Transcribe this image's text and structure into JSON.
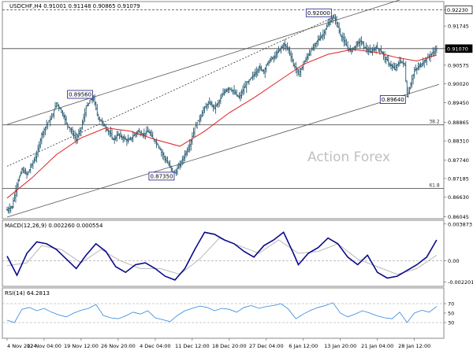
{
  "header": {
    "symbol_info": "USDCHF,H4  0.91001 0.91148 0.90865 0.91079"
  },
  "watermark": "Action Forex",
  "colors": {
    "price_bar": "#2b5d73",
    "ma": "#e02020",
    "macd_line": "#0a0a8c",
    "macd_signal": "#b8b8b8",
    "rsi": "#2e86de",
    "channel": "#555555",
    "fib": "#555555",
    "label_border": "#1a1a8c",
    "price_tag_fill": "#ffffff"
  },
  "chart_data": [
    {
      "type": "candlestick",
      "name": "price",
      "ylim": [
        0.8603,
        0.9243
      ],
      "right_axis_ticks": [
        "0.92230",
        "0.91745",
        "0.91070",
        "0.90575",
        "0.90020",
        "0.89450",
        "0.88865",
        "0.88310",
        "0.87740",
        "0.87185",
        "0.86630",
        "0.86045"
      ],
      "right_axis_values": [
        0.9223,
        0.91745,
        0.9107,
        0.90575,
        0.9002,
        0.8945,
        0.88865,
        0.8831,
        0.8774,
        0.87185,
        0.8663,
        0.86045
      ],
      "current_price_tag": "0.91070",
      "x_labels": [
        "4 Nov 2024",
        "12 Nov 04:00",
        "19 Nov 12:00",
        "26 Nov 20:00",
        "4 Dec 04:00",
        "11 Dec 12:00",
        "18 Dec 20:00",
        "27 Dec 04:00",
        "6 Jan 12:00",
        "13 Jan 20:00",
        "21 Jan 04:00",
        "28 Jan 12:00"
      ],
      "x_label_positions": [
        0,
        15,
        30,
        45,
        60,
        75,
        90,
        105,
        120,
        135,
        150,
        165
      ],
      "x_range": [
        0,
        175
      ],
      "price_path": [
        [
          0,
          0.8625
        ],
        [
          2,
          0.8635
        ],
        [
          4,
          0.87
        ],
        [
          6,
          0.8745
        ],
        [
          8,
          0.873
        ],
        [
          10,
          0.876
        ],
        [
          12,
          0.879
        ],
        [
          14,
          0.885
        ],
        [
          16,
          0.888
        ],
        [
          18,
          0.89
        ],
        [
          20,
          0.8945
        ],
        [
          22,
          0.892
        ],
        [
          24,
          0.8885
        ],
        [
          26,
          0.886
        ],
        [
          28,
          0.8835
        ],
        [
          30,
          0.887
        ],
        [
          32,
          0.893
        ],
        [
          34,
          0.8955
        ],
        [
          35,
          0.8956
        ],
        [
          37,
          0.89
        ],
        [
          39,
          0.888
        ],
        [
          41,
          0.886
        ],
        [
          43,
          0.8835
        ],
        [
          45,
          0.885
        ],
        [
          47,
          0.884
        ],
        [
          49,
          0.883
        ],
        [
          51,
          0.8845
        ],
        [
          53,
          0.886
        ],
        [
          55,
          0.885
        ],
        [
          57,
          0.886
        ],
        [
          59,
          0.884
        ],
        [
          61,
          0.882
        ],
        [
          63,
          0.879
        ],
        [
          65,
          0.8765
        ],
        [
          67,
          0.874
        ],
        [
          68,
          0.8735
        ],
        [
          70,
          0.876
        ],
        [
          72,
          0.879
        ],
        [
          74,
          0.882
        ],
        [
          76,
          0.887
        ],
        [
          78,
          0.89
        ],
        [
          80,
          0.893
        ],
        [
          82,
          0.8945
        ],
        [
          84,
          0.893
        ],
        [
          86,
          0.895
        ],
        [
          88,
          0.898
        ],
        [
          90,
          0.899
        ],
        [
          92,
          0.8975
        ],
        [
          94,
          0.896
        ],
        [
          96,
          0.899
        ],
        [
          98,
          0.901
        ],
        [
          100,
          0.903
        ],
        [
          102,
          0.905
        ],
        [
          104,
          0.904
        ],
        [
          106,
          0.907
        ],
        [
          108,
          0.908
        ],
        [
          110,
          0.91
        ],
        [
          112,
          0.912
        ],
        [
          114,
          0.9105
        ],
        [
          116,
          0.906
        ],
        [
          118,
          0.903
        ],
        [
          120,
          0.906
        ],
        [
          122,
          0.909
        ],
        [
          124,
          0.911
        ],
        [
          126,
          0.9135
        ],
        [
          128,
          0.915
        ],
        [
          130,
          0.918
        ],
        [
          132,
          0.92
        ],
        [
          133,
          0.9195
        ],
        [
          135,
          0.915
        ],
        [
          137,
          0.912
        ],
        [
          139,
          0.91
        ],
        [
          141,
          0.9115
        ],
        [
          143,
          0.913
        ],
        [
          145,
          0.911
        ],
        [
          147,
          0.9095
        ],
        [
          149,
          0.911
        ],
        [
          151,
          0.9105
        ],
        [
          153,
          0.908
        ],
        [
          155,
          0.906
        ],
        [
          157,
          0.9045
        ],
        [
          159,
          0.907
        ],
        [
          161,
          0.906
        ],
        [
          162,
          0.8964
        ],
        [
          163,
          0.899
        ],
        [
          165,
          0.904
        ],
        [
          167,
          0.9055
        ],
        [
          169,
          0.907
        ],
        [
          171,
          0.9085
        ],
        [
          173,
          0.9099
        ],
        [
          174,
          0.91079
        ]
      ],
      "ma_path": [
        [
          0,
          0.866
        ],
        [
          10,
          0.872
        ],
        [
          20,
          0.879
        ],
        [
          30,
          0.884
        ],
        [
          40,
          0.887
        ],
        [
          50,
          0.886
        ],
        [
          60,
          0.8835
        ],
        [
          70,
          0.8815
        ],
        [
          80,
          0.886
        ],
        [
          90,
          0.8915
        ],
        [
          100,
          0.896
        ],
        [
          110,
          0.901
        ],
        [
          120,
          0.906
        ],
        [
          130,
          0.909
        ],
        [
          140,
          0.9105
        ],
        [
          150,
          0.9095
        ],
        [
          158,
          0.908
        ],
        [
          166,
          0.907
        ],
        [
          174,
          0.9088
        ]
      ],
      "annotations": [
        {
          "text": "0.89560",
          "x": 35,
          "y": 0.8956
        },
        {
          "text": "0.87350",
          "x": 68,
          "y": 0.8735
        },
        {
          "text": "0.92000",
          "x": 132,
          "y": 0.92
        },
        {
          "text": "0.89640",
          "x": 162,
          "y": 0.8964
        }
      ],
      "fib_lines": [
        {
          "label": "38.2",
          "y": 0.8879
        },
        {
          "label": "61.8",
          "y": 0.8689
        }
      ],
      "horizontal_lines": [
        0.9223,
        0.9107
      ],
      "channel_upper": [
        [
          0,
          0.888
        ],
        [
          175,
          0.929
        ]
      ],
      "channel_lower": [
        [
          0,
          0.8603
        ],
        [
          175,
          0.9
        ]
      ],
      "dashed_trend": [
        [
          0,
          0.8755
        ],
        [
          132,
          0.92
        ]
      ]
    },
    {
      "type": "line",
      "name": "macd",
      "title": "MACD(12,26,9) 0.002260 0.000554",
      "ylim": [
        -0.0025,
        0.0041
      ],
      "right_axis_ticks": [
        "0.003873",
        "0.00",
        "-0.002201"
      ],
      "right_axis_values": [
        0.003873,
        0.0,
        -0.002201
      ],
      "macd_path": [
        [
          0,
          0.0005
        ],
        [
          4,
          -0.0015
        ],
        [
          8,
          0.0008
        ],
        [
          12,
          0.002
        ],
        [
          16,
          0.0018
        ],
        [
          20,
          0.0012
        ],
        [
          24,
          0.0002
        ],
        [
          28,
          -0.0008
        ],
        [
          32,
          0.0006
        ],
        [
          36,
          0.0018
        ],
        [
          40,
          0.001
        ],
        [
          44,
          -0.0006
        ],
        [
          48,
          -0.0012
        ],
        [
          52,
          -0.0004
        ],
        [
          56,
          -0.0002
        ],
        [
          60,
          -0.0008
        ],
        [
          64,
          -0.0016
        ],
        [
          68,
          -0.002
        ],
        [
          72,
          -0.0008
        ],
        [
          76,
          0.0012
        ],
        [
          80,
          0.003
        ],
        [
          84,
          0.0028
        ],
        [
          88,
          0.0022
        ],
        [
          92,
          0.0018
        ],
        [
          96,
          0.001
        ],
        [
          100,
          0.0004
        ],
        [
          104,
          0.0016
        ],
        [
          108,
          0.0022
        ],
        [
          112,
          0.003
        ],
        [
          116,
          0.0008
        ],
        [
          118,
          -0.0004
        ],
        [
          122,
          0.0008
        ],
        [
          126,
          0.0014
        ],
        [
          130,
          0.0024
        ],
        [
          134,
          0.0018
        ],
        [
          138,
          0.0004
        ],
        [
          142,
          -0.0004
        ],
        [
          146,
          0.0006
        ],
        [
          150,
          -0.0012
        ],
        [
          154,
          -0.0018
        ],
        [
          158,
          -0.0016
        ],
        [
          162,
          -0.001
        ],
        [
          166,
          -0.0004
        ],
        [
          170,
          0.0004
        ],
        [
          174,
          0.0022
        ]
      ],
      "signal_path": [
        [
          0,
          -0.0005
        ],
        [
          8,
          -0.0002
        ],
        [
          14,
          0.0016
        ],
        [
          22,
          0.0012
        ],
        [
          30,
          -0.0002
        ],
        [
          38,
          0.0012
        ],
        [
          46,
          0.0
        ],
        [
          54,
          -0.0008
        ],
        [
          62,
          -0.0008
        ],
        [
          70,
          -0.0014
        ],
        [
          78,
          0.0002
        ],
        [
          86,
          0.0024
        ],
        [
          94,
          0.0016
        ],
        [
          102,
          0.0008
        ],
        [
          110,
          0.0022
        ],
        [
          118,
          0.0008
        ],
        [
          126,
          0.001
        ],
        [
          134,
          0.0018
        ],
        [
          142,
          0.0002
        ],
        [
          150,
          -0.0006
        ],
        [
          158,
          -0.0014
        ],
        [
          166,
          -0.0008
        ],
        [
          174,
          0.0006
        ]
      ]
    },
    {
      "type": "line",
      "name": "rsi",
      "title": "RSI(14) 64.2813",
      "ylim": [
        0,
        100
      ],
      "right_axis_ticks": [
        "70",
        "50",
        "30"
      ],
      "right_axis_values": [
        70,
        50,
        30
      ],
      "rsi_path": [
        [
          0,
          35
        ],
        [
          3,
          30
        ],
        [
          6,
          58
        ],
        [
          9,
          62
        ],
        [
          12,
          55
        ],
        [
          15,
          60
        ],
        [
          18,
          52
        ],
        [
          21,
          46
        ],
        [
          24,
          42
        ],
        [
          27,
          50
        ],
        [
          30,
          56
        ],
        [
          33,
          60
        ],
        [
          36,
          68
        ],
        [
          39,
          45
        ],
        [
          42,
          40
        ],
        [
          45,
          38
        ],
        [
          48,
          44
        ],
        [
          51,
          52
        ],
        [
          54,
          48
        ],
        [
          57,
          55
        ],
        [
          60,
          40
        ],
        [
          63,
          36
        ],
        [
          66,
          32
        ],
        [
          69,
          45
        ],
        [
          72,
          55
        ],
        [
          75,
          60
        ],
        [
          78,
          65
        ],
        [
          81,
          62
        ],
        [
          84,
          55
        ],
        [
          87,
          60
        ],
        [
          90,
          58
        ],
        [
          93,
          52
        ],
        [
          96,
          62
        ],
        [
          99,
          66
        ],
        [
          102,
          60
        ],
        [
          105,
          64
        ],
        [
          108,
          66
        ],
        [
          111,
          70
        ],
        [
          114,
          58
        ],
        [
          117,
          38
        ],
        [
          120,
          48
        ],
        [
          123,
          56
        ],
        [
          126,
          62
        ],
        [
          129,
          66
        ],
        [
          132,
          72
        ],
        [
          135,
          50
        ],
        [
          138,
          42
        ],
        [
          141,
          48
        ],
        [
          144,
          55
        ],
        [
          147,
          50
        ],
        [
          150,
          44
        ],
        [
          153,
          40
        ],
        [
          156,
          38
        ],
        [
          159,
          52
        ],
        [
          162,
          30
        ],
        [
          165,
          50
        ],
        [
          168,
          56
        ],
        [
          171,
          52
        ],
        [
          174,
          64
        ]
      ]
    }
  ]
}
